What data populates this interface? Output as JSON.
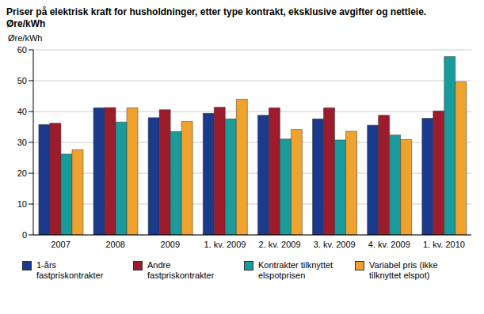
{
  "chart_data": {
    "type": "bar",
    "title": "Priser på elektrisk kraft for husholdninger, etter type kontrakt, eksklusive avgifter og nettleie.",
    "subtitle": "Øre/kWh",
    "y_label": "Øre/kWh",
    "categories": [
      "2007",
      "2008",
      "2009",
      "1. kv. 2009",
      "2. kv. 2009",
      "3. kv. 2009",
      "4. kv. 2009",
      "1. kv. 2010"
    ],
    "series": [
      {
        "name": "1-års fastpriskontrakter",
        "color": "#1b3a8c",
        "values": [
          35.8,
          41.2,
          38.0,
          39.4,
          38.8,
          37.6,
          35.6,
          37.8
        ]
      },
      {
        "name": "Andre fastpriskontrakter",
        "color": "#9c1c2c",
        "values": [
          36.2,
          41.3,
          40.6,
          41.4,
          41.2,
          41.2,
          38.8,
          40.2
        ]
      },
      {
        "name": "Kontrakter tilknyttet elspotprisen",
        "color": "#1a9b9b",
        "values": [
          26.2,
          36.6,
          33.5,
          37.6,
          31.1,
          30.8,
          32.4,
          57.8
        ]
      },
      {
        "name": "Variabel pris (ikke tilknyttet elspot)",
        "color": "#f0a22e",
        "values": [
          27.6,
          41.2,
          36.8,
          44.0,
          34.2,
          33.6,
          30.9,
          49.6
        ]
      }
    ],
    "ylim": [
      0,
      60
    ],
    "yticks": [
      0,
      10,
      20,
      30,
      40,
      50,
      60
    ],
    "grid": true,
    "legend": "bottom"
  }
}
